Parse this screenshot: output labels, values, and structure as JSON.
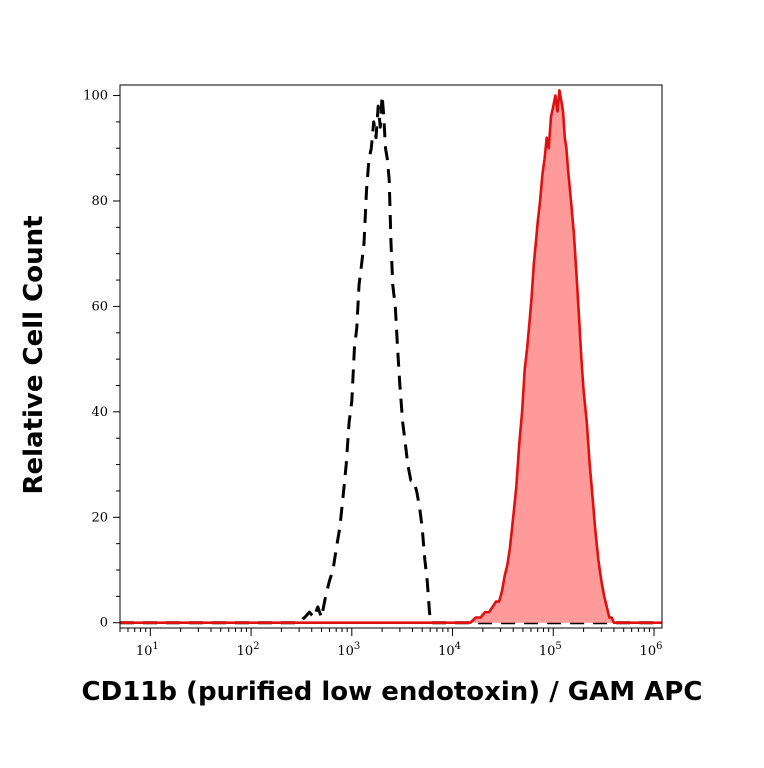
{
  "chart_data": {
    "type": "area",
    "title": "",
    "xlabel": "CD11b (purified low endotoxin) / GAM APC",
    "ylabel": "Relative Cell Count",
    "x_scale": "log",
    "xlim": [
      5,
      1200000
    ],
    "ylim": [
      -1,
      102
    ],
    "y_ticks": [
      0,
      20,
      40,
      60,
      80,
      100
    ],
    "x_ticks": [
      {
        "value": 10,
        "base": "10",
        "exp": "1"
      },
      {
        "value": 100,
        "base": "10",
        "exp": "2"
      },
      {
        "value": 1000,
        "base": "10",
        "exp": "3"
      },
      {
        "value": 10000,
        "base": "10",
        "exp": "4"
      },
      {
        "value": 100000,
        "base": "10",
        "exp": "5"
      },
      {
        "value": 1000000,
        "base": "10",
        "exp": "6"
      }
    ],
    "grid": false,
    "colors": {
      "isotype_line": "#000000",
      "sample_line": "#e01010",
      "sample_fill": "#ff9a9a"
    },
    "series": [
      {
        "style": "dashed-outline",
        "x": [
          5,
          300,
          340,
          380,
          420,
          460,
          500,
          550,
          600,
          650,
          700,
          760,
          820,
          880,
          940,
          1000,
          1060,
          1120,
          1180,
          1250,
          1320,
          1400,
          1480,
          1560,
          1650,
          1740,
          1830,
          1920,
          2000,
          2080,
          2160,
          2250,
          2350,
          2450,
          2550,
          2700,
          2850,
          3000,
          3200,
          3400,
          3600,
          3850,
          4100,
          4400,
          4700,
          5000,
          5300,
          5600,
          5900,
          6100,
          6300,
          1200000
        ],
        "y": [
          0,
          0,
          1,
          2,
          1,
          3,
          1,
          5,
          8,
          10,
          14,
          18,
          24,
          30,
          38,
          42,
          52,
          56,
          64,
          68,
          72,
          82,
          88,
          90,
          95,
          92,
          98,
          94,
          100,
          96,
          90,
          88,
          84,
          72,
          64,
          60,
          52,
          45,
          38,
          34,
          30,
          27,
          27,
          25,
          22,
          18,
          12,
          8,
          2,
          0,
          0,
          0
        ]
      },
      {
        "style": "filled",
        "x": [
          5,
          15000,
          17000,
          19000,
          21000,
          23000,
          25000,
          27000,
          29000,
          31000,
          33000,
          35000,
          37000,
          39000,
          41000,
          43000,
          46000,
          49000,
          52000,
          55000,
          58000,
          61000,
          64000,
          67000,
          70000,
          74000,
          78000,
          82000,
          86000,
          90000,
          95000,
          100000,
          105000,
          110000,
          115000,
          120000,
          125000,
          130000,
          135000,
          140000,
          150000,
          160000,
          170000,
          180000,
          190000,
          200000,
          215000,
          230000,
          245000,
          260000,
          280000,
          300000,
          320000,
          340000,
          360000,
          380000,
          400000,
          420000,
          450000,
          1200000
        ],
        "y": [
          0,
          0,
          1,
          1,
          2,
          2,
          3,
          4,
          4,
          6,
          9,
          11,
          14,
          18,
          22,
          26,
          34,
          40,
          48,
          52,
          57,
          62,
          68,
          72,
          76,
          80,
          85,
          88,
          92,
          90,
          96,
          98,
          100,
          97,
          101,
          99,
          97,
          92,
          90,
          86,
          80,
          74,
          66,
          58,
          50,
          44,
          38,
          30,
          24,
          18,
          12,
          8,
          5,
          3,
          1,
          1,
          0,
          0,
          0,
          0
        ]
      }
    ]
  }
}
